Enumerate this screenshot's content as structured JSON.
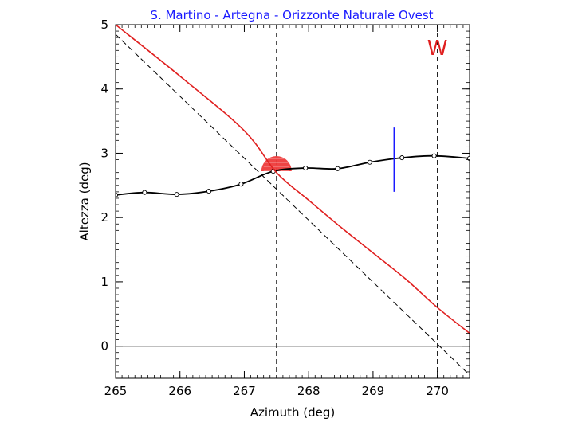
{
  "chart_data": {
    "type": "line",
    "title": "S. Martino - Artegna - Orizzonte Naturale Ovest",
    "xlabel": "Azimuth (deg)",
    "ylabel": "Altezza (deg)",
    "xlim": [
      265,
      270.5
    ],
    "ylim": [
      -0.5,
      5
    ],
    "x_ticks": [
      265,
      266,
      267,
      268,
      269,
      270
    ],
    "y_ticks": [
      0,
      1,
      2,
      3,
      4,
      5
    ],
    "grid": false,
    "cardinal_marker": {
      "label": "W",
      "x": 270
    },
    "series": [
      {
        "style": "black-line-with-circles",
        "color": "#000000",
        "x": [
          265.0,
          265.45,
          265.95,
          266.45,
          266.95,
          267.45,
          267.95,
          268.45,
          268.95,
          269.45,
          269.95,
          270.5
        ],
        "y": [
          2.35,
          2.39,
          2.36,
          2.41,
          2.52,
          2.72,
          2.77,
          2.76,
          2.86,
          2.93,
          2.96,
          2.92
        ]
      },
      {
        "style": "red-solid",
        "color": "#e02020",
        "x": [
          265.0,
          266.0,
          267.0,
          267.5,
          268.0,
          268.5,
          269.0,
          269.5,
          270.0,
          270.5
        ],
        "y": [
          5.0,
          4.2,
          3.35,
          2.7,
          2.27,
          1.85,
          1.45,
          1.05,
          0.6,
          0.2
        ]
      },
      {
        "style": "black-dashed",
        "color": "#000000",
        "x": [
          265.0,
          270.5
        ],
        "y": [
          4.85,
          -0.45
        ]
      }
    ],
    "horizontal_line": {
      "y": 0,
      "color": "#000000"
    },
    "vertical_dashed_lines": [
      267.5,
      270
    ],
    "sun_marker": {
      "x": 267.5,
      "y": 2.77,
      "color": "#ee3a3a"
    },
    "blue_segment": {
      "x": 269.33,
      "y_from": 2.4,
      "y_to": 3.4,
      "color": "#1a1aff"
    }
  }
}
